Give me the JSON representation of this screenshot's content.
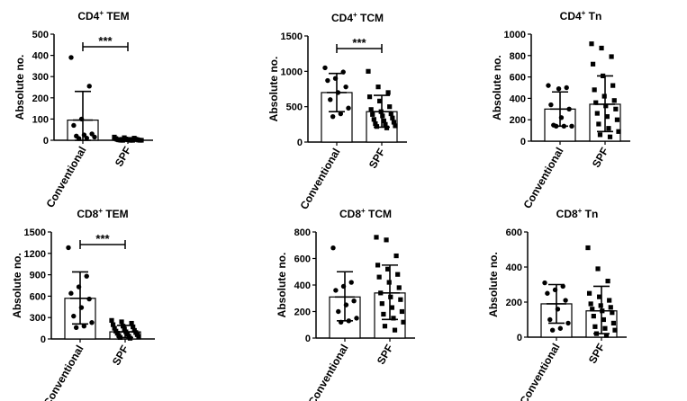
{
  "chart_data": [
    {
      "type": "scatter-bar",
      "title": "CD4+ TEM",
      "title_main": "CD4",
      "title_sup": "+",
      "title_rest": " TEM",
      "ylabel": "Absolute no.",
      "ylim": [
        0,
        500
      ],
      "yticks": [
        0,
        100,
        200,
        300,
        400,
        500
      ],
      "categories": [
        "Conventional",
        "SPF"
      ],
      "significance": "***",
      "series": [
        {
          "name": "Conventional",
          "marker": "circle",
          "mean": 95,
          "sd_low": 0,
          "sd_high": 230,
          "points": [
            390,
            255,
            100,
            70,
            30,
            25,
            20,
            15,
            10,
            8
          ]
        },
        {
          "name": "SPF",
          "marker": "square",
          "mean": 6,
          "sd_low": 0,
          "sd_high": 12,
          "points": [
            15,
            12,
            10,
            8,
            6,
            5,
            4,
            3,
            3,
            2,
            2,
            1,
            1,
            0,
            0,
            0,
            0,
            0,
            0,
            0
          ]
        }
      ]
    },
    {
      "type": "scatter-bar",
      "title": "CD4+ TCM",
      "title_main": "CD4",
      "title_sup": "+",
      "title_rest": " TCM",
      "ylabel": "Absolute no.",
      "ylim": [
        0,
        1500
      ],
      "yticks": [
        0,
        500,
        1000,
        1500
      ],
      "categories": [
        "Conventional",
        "SPF"
      ],
      "significance": "***",
      "series": [
        {
          "name": "Conventional",
          "marker": "circle",
          "mean": 700,
          "sd_low": 430,
          "sd_high": 970,
          "points": [
            1050,
            990,
            900,
            870,
            780,
            700,
            600,
            480,
            400,
            360
          ]
        },
        {
          "name": "SPF",
          "marker": "square",
          "mean": 430,
          "sd_low": 210,
          "sd_high": 660,
          "points": [
            1000,
            780,
            700,
            640,
            580,
            500,
            460,
            430,
            400,
            390,
            370,
            340,
            320,
            300,
            280,
            260,
            250,
            230,
            220,
            200
          ]
        }
      ]
    },
    {
      "type": "scatter-bar",
      "title": "CD4+ Tn",
      "title_main": "CD4",
      "title_sup": "+",
      "title_rest": " Tn",
      "ylabel": "Absolute no.",
      "ylim": [
        0,
        1000
      ],
      "yticks": [
        0,
        200,
        400,
        600,
        800,
        1000
      ],
      "categories": [
        "Conventional",
        "SPF"
      ],
      "significance": "",
      "series": [
        {
          "name": "Conventional",
          "marker": "circle",
          "mean": 300,
          "sd_low": 140,
          "sd_high": 460,
          "points": [
            520,
            500,
            490,
            340,
            300,
            220,
            150,
            140,
            140,
            140
          ]
        },
        {
          "name": "SPF",
          "marker": "square",
          "mean": 345,
          "sd_low": 90,
          "sd_high": 610,
          "points": [
            910,
            870,
            790,
            720,
            610,
            520,
            480,
            420,
            380,
            360,
            330,
            300,
            260,
            230,
            200,
            160,
            120,
            90,
            60,
            40
          ]
        }
      ]
    },
    {
      "type": "scatter-bar",
      "title": "CD8+ TEM",
      "title_main": "CD8",
      "title_sup": "+",
      "title_rest": " TEM",
      "ylabel": "Absolute no.",
      "ylim": [
        0,
        1500
      ],
      "yticks": [
        0,
        300,
        600,
        900,
        1200,
        1500
      ],
      "categories": [
        "Conventional",
        "SPF"
      ],
      "significance": "***",
      "series": [
        {
          "name": "Conventional",
          "marker": "circle",
          "mean": 570,
          "sd_low": 210,
          "sd_high": 940,
          "points": [
            1280,
            880,
            730,
            640,
            560,
            440,
            320,
            230,
            180,
            160
          ]
        },
        {
          "name": "SPF",
          "marker": "square",
          "mean": 100,
          "sd_low": 20,
          "sd_high": 190,
          "points": [
            260,
            240,
            220,
            200,
            180,
            170,
            150,
            140,
            120,
            110,
            100,
            90,
            80,
            70,
            60,
            50,
            40,
            30,
            20,
            10
          ]
        }
      ]
    },
    {
      "type": "scatter-bar",
      "title": "CD8+ TCM",
      "title_main": "CD8",
      "title_sup": "+",
      "title_rest": " TCM",
      "ylabel": "Absolute no.",
      "ylim": [
        0,
        800
      ],
      "yticks": [
        0,
        200,
        400,
        600,
        800
      ],
      "categories": [
        "Conventional",
        "SPF"
      ],
      "significance": "",
      "series": [
        {
          "name": "Conventional",
          "marker": "circle",
          "mean": 310,
          "sd_low": 130,
          "sd_high": 500,
          "points": [
            680,
            420,
            390,
            360,
            280,
            250,
            200,
            150,
            130,
            120
          ]
        },
        {
          "name": "SPF",
          "marker": "square",
          "mean": 340,
          "sd_low": 140,
          "sd_high": 550,
          "points": [
            760,
            740,
            620,
            550,
            520,
            480,
            460,
            420,
            380,
            340,
            310,
            290,
            260,
            230,
            200,
            180,
            150,
            120,
            90,
            60
          ]
        }
      ]
    },
    {
      "type": "scatter-bar",
      "title": "CD8+ Tn",
      "title_main": "CD8",
      "title_sup": "+",
      "title_rest": " Tn",
      "ylabel": "Absolute no.",
      "ylim": [
        0,
        600
      ],
      "yticks": [
        0,
        200,
        400,
        600
      ],
      "categories": [
        "Conventional",
        "SPF"
      ],
      "significance": "",
      "series": [
        {
          "name": "Conventional",
          "marker": "circle",
          "mean": 190,
          "sd_low": 80,
          "sd_high": 300,
          "points": [
            310,
            290,
            270,
            250,
            210,
            160,
            100,
            80,
            50,
            40
          ]
        },
        {
          "name": "SPF",
          "marker": "square",
          "mean": 150,
          "sd_low": 20,
          "sd_high": 290,
          "points": [
            510,
            390,
            320,
            250,
            230,
            210,
            190,
            180,
            170,
            160,
            150,
            140,
            120,
            100,
            80,
            60,
            50,
            40,
            20,
            10
          ]
        }
      ]
    }
  ]
}
